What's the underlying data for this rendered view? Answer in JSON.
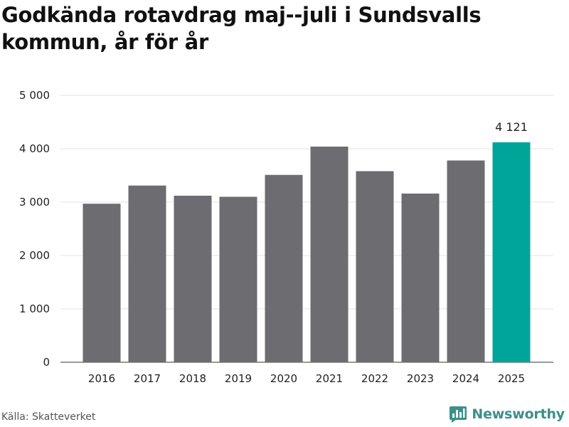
{
  "header": {
    "title": "Godkända rotavdrag maj--juli i Sundsvalls kommun, år för år"
  },
  "footer": {
    "source": "Källa: Skatteverket",
    "brand": "Newsworthy",
    "brand_icon": "bar-chart-logo-icon"
  },
  "colors": {
    "bar": "#6d6c71",
    "highlight": "#00a59a",
    "grid": "#e3e3e3",
    "brand": "#3a8f8a"
  },
  "chart_data": {
    "type": "bar",
    "title": "Godkända rotavdrag maj--juli i Sundsvalls kommun, år för år",
    "categories": [
      "2016",
      "2017",
      "2018",
      "2019",
      "2020",
      "2021",
      "2022",
      "2023",
      "2024",
      "2025"
    ],
    "values": [
      2970,
      3310,
      3120,
      3100,
      3510,
      4040,
      3580,
      3160,
      3780,
      4121
    ],
    "highlight_index": 9,
    "data_labels": [
      {
        "index": 9,
        "text": "4 121"
      }
    ],
    "ylim": [
      0,
      5000
    ],
    "yticks": [
      0,
      1000,
      2000,
      3000,
      4000,
      5000
    ],
    "ytick_labels": [
      "0",
      "1 000",
      "2 000",
      "3 000",
      "4 000",
      "5 000"
    ],
    "xlabel": "",
    "ylabel": "",
    "grid": true,
    "legend": "none"
  }
}
